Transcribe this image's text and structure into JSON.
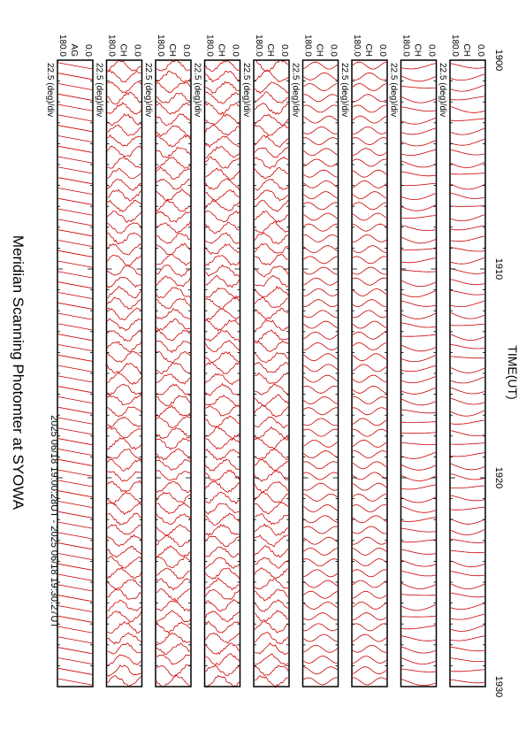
{
  "title": "Meridian Scanning Photomter at SYOWA",
  "subtitle": "2025 06/18 19:00:28UT - 2025 06/18 19:30:27UT",
  "chart_data": {
    "type": "line",
    "orientation": "rotated-90",
    "xlabel": "TIME(UT)",
    "xlim": [
      1900,
      1930
    ],
    "x_ticks": [
      "1900",
      "1910",
      "1920",
      "1930"
    ],
    "trace_color": "#cc0000",
    "panels": [
      {
        "channel": "AG",
        "scale": "22.5 (deg)/div",
        "ymax": "180.0",
        "ymin": "0.0",
        "pattern": "sawtooth"
      },
      {
        "channel": "CH",
        "scale": "22.5 (deg)/div",
        "ymax": "180.0",
        "ymin": "0.0",
        "pattern": "noisy"
      },
      {
        "channel": "CH",
        "scale": "22.5 (deg)/div",
        "ymax": "180.0",
        "ymin": "0.0",
        "pattern": "noisy"
      },
      {
        "channel": "CH",
        "scale": "22.5 (deg)/div",
        "ymax": "180.0",
        "ymin": "0.0",
        "pattern": "noisy"
      },
      {
        "channel": "CH",
        "scale": "22.5 (deg)/div",
        "ymax": "180.0",
        "ymin": "0.0",
        "pattern": "noisy"
      },
      {
        "channel": "CH",
        "scale": "22.5 (deg)/div",
        "ymax": "180.0",
        "ymin": "0.0",
        "pattern": "wavy"
      },
      {
        "channel": "CH",
        "scale": "22.5 (deg)/div",
        "ymax": "180.0",
        "ymin": "0.0",
        "pattern": "wavy"
      },
      {
        "channel": "CH",
        "scale": "22.5 (deg)/div",
        "ymax": "180.0",
        "ymin": "0.0",
        "pattern": "smooth"
      },
      {
        "channel": "CH",
        "scale": "22.5 (deg)/div",
        "ymax": "180.0",
        "ymin": "0.0",
        "pattern": "smooth"
      }
    ]
  }
}
